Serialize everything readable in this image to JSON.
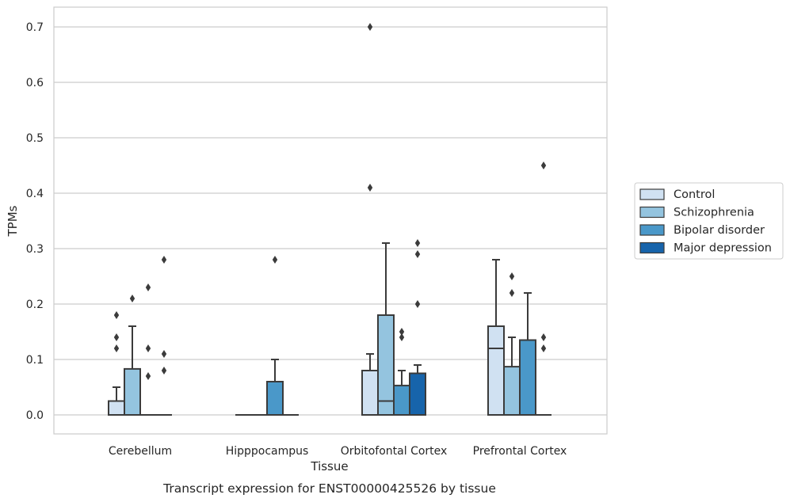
{
  "chart_data": {
    "type": "box",
    "title": "",
    "caption": "Transcript expression for ENST00000425526 by tissue",
    "xlabel": "Tissue",
    "ylabel": "TPMs",
    "ylim": [
      -0.034,
      0.736
    ],
    "yticks": [
      0.0,
      0.1,
      0.2,
      0.3,
      0.4,
      0.5,
      0.6,
      0.7
    ],
    "ytick_labels": [
      "0.0",
      "0.1",
      "0.2",
      "0.3",
      "0.4",
      "0.5",
      "0.6",
      "0.7"
    ],
    "grid": "horizontal",
    "legend_position": "right",
    "categories": [
      "Cerebellum",
      "Hipppocampus",
      "Orbitofontal Cortex",
      "Prefrontal Cortex"
    ],
    "series": [
      {
        "name": "Control",
        "color": "#d0e1f2",
        "boxes": [
          {
            "q1": 0.0,
            "median": 0.0,
            "q3": 0.025,
            "whisker_low": 0.0,
            "whisker_high": 0.05,
            "outliers": [
              0.12,
              0.14,
              0.18
            ]
          },
          {
            "q1": 0.0,
            "median": 0.0,
            "q3": 0.0,
            "whisker_low": 0.0,
            "whisker_high": 0.0,
            "outliers": []
          },
          {
            "q1": 0.0,
            "median": 0.0,
            "q3": 0.08,
            "whisker_low": 0.0,
            "whisker_high": 0.11,
            "outliers": [
              0.41,
              0.7
            ]
          },
          {
            "q1": 0.0,
            "median": 0.12,
            "q3": 0.16,
            "whisker_low": 0.0,
            "whisker_high": 0.28,
            "outliers": []
          }
        ]
      },
      {
        "name": "Schizophrenia",
        "color": "#94c4df",
        "boxes": [
          {
            "q1": 0.0,
            "median": 0.0,
            "q3": 0.083,
            "whisker_low": 0.0,
            "whisker_high": 0.16,
            "outliers": [
              0.21
            ]
          },
          {
            "q1": 0.0,
            "median": 0.0,
            "q3": 0.0,
            "whisker_low": 0.0,
            "whisker_high": 0.0,
            "outliers": []
          },
          {
            "q1": 0.0,
            "median": 0.025,
            "q3": 0.18,
            "whisker_low": 0.0,
            "whisker_high": 0.31,
            "outliers": []
          },
          {
            "q1": 0.0,
            "median": 0.0,
            "q3": 0.087,
            "whisker_low": 0.0,
            "whisker_high": 0.14,
            "outliers": [
              0.22,
              0.25
            ]
          }
        ]
      },
      {
        "name": "Bipolar disorder",
        "color": "#4a98c9",
        "boxes": [
          {
            "q1": 0.0,
            "median": 0.0,
            "q3": 0.0,
            "whisker_low": 0.0,
            "whisker_high": 0.0,
            "outliers": [
              0.07,
              0.12,
              0.23
            ]
          },
          {
            "q1": 0.0,
            "median": 0.0,
            "q3": 0.06,
            "whisker_low": 0.0,
            "whisker_high": 0.1,
            "outliers": [
              0.28
            ]
          },
          {
            "q1": 0.0,
            "median": 0.0,
            "q3": 0.053,
            "whisker_low": 0.0,
            "whisker_high": 0.08,
            "outliers": [
              0.14,
              0.15
            ]
          },
          {
            "q1": 0.0,
            "median": 0.0,
            "q3": 0.135,
            "whisker_low": 0.0,
            "whisker_high": 0.22,
            "outliers": []
          }
        ]
      },
      {
        "name": "Major depression",
        "color": "#1764ab",
        "boxes": [
          {
            "q1": 0.0,
            "median": 0.0,
            "q3": 0.0,
            "whisker_low": 0.0,
            "whisker_high": 0.0,
            "outliers": [
              0.08,
              0.11,
              0.28
            ]
          },
          {
            "q1": 0.0,
            "median": 0.0,
            "q3": 0.0,
            "whisker_low": 0.0,
            "whisker_high": 0.0,
            "outliers": []
          },
          {
            "q1": 0.0,
            "median": 0.0,
            "q3": 0.075,
            "whisker_low": 0.0,
            "whisker_high": 0.09,
            "outliers": [
              0.2,
              0.29,
              0.31
            ]
          },
          {
            "q1": 0.0,
            "median": 0.0,
            "q3": 0.0,
            "whisker_low": 0.0,
            "whisker_high": 0.0,
            "outliers": [
              0.12,
              0.14,
              0.45
            ]
          }
        ]
      }
    ]
  }
}
